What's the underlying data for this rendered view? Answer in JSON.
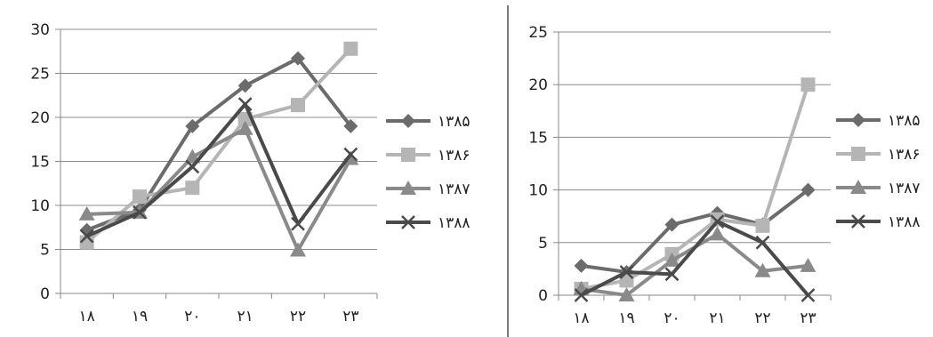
{
  "chart_data": [
    {
      "type": "line",
      "categories": [
        "۱۸",
        "۱۹",
        "۲۰",
        "۲۱",
        "۲۲",
        "۲۳"
      ],
      "ylim": [
        0,
        30
      ],
      "yticks": [
        0,
        5,
        10,
        15,
        20,
        25,
        30
      ],
      "grid": true,
      "legend_position": "right",
      "series": [
        {
          "name": "۱۳۸۵",
          "marker": "diamond",
          "color": "#6b6b6b",
          "values": [
            7.2,
            9.5,
            19.0,
            23.6,
            26.7,
            19.0
          ]
        },
        {
          "name": "۱۳۸۶",
          "marker": "square",
          "color": "#b5b5b5",
          "values": [
            5.8,
            11.0,
            12.0,
            19.8,
            21.4,
            27.8
          ]
        },
        {
          "name": "۱۳۸۷",
          "marker": "triangle",
          "color": "#8a8a8a",
          "values": [
            9.0,
            9.2,
            15.5,
            18.7,
            4.9,
            15.3
          ]
        },
        {
          "name": "۱۳۸۸",
          "marker": "x",
          "color": "#4a4a4a",
          "values": [
            6.5,
            9.2,
            14.4,
            21.5,
            7.9,
            15.8
          ]
        }
      ]
    },
    {
      "type": "line",
      "categories": [
        "۱۸",
        "۱۹",
        "۲۰",
        "۲۱",
        "۲۲",
        "۲۳"
      ],
      "ylim": [
        0,
        25
      ],
      "yticks": [
        0,
        5,
        10,
        15,
        20,
        25
      ],
      "grid": true,
      "legend_position": "right",
      "series": [
        {
          "name": "۱۳۸۵",
          "marker": "diamond",
          "color": "#6b6b6b",
          "values": [
            2.8,
            2.2,
            6.7,
            7.8,
            6.7,
            10.0
          ]
        },
        {
          "name": "۱۳۸۶",
          "marker": "square",
          "color": "#b5b5b5",
          "values": [
            0.6,
            1.4,
            3.9,
            7.2,
            6.6,
            20.0
          ]
        },
        {
          "name": "۱۳۸۷",
          "marker": "triangle",
          "color": "#8a8a8a",
          "values": [
            0.6,
            0.0,
            3.3,
            5.8,
            2.3,
            2.8
          ]
        },
        {
          "name": "۱۳۸۸",
          "marker": "x",
          "color": "#4a4a4a",
          "values": [
            0.0,
            2.2,
            2.0,
            7.0,
            5.0,
            0.0
          ]
        }
      ]
    }
  ]
}
